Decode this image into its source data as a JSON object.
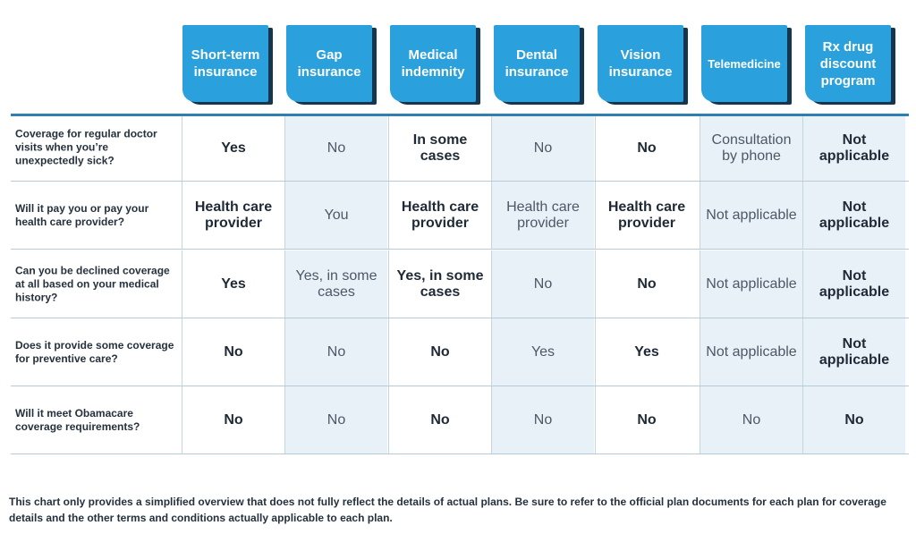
{
  "chart_data": {
    "type": "table",
    "columns": [
      "Short-term insurance",
      "Gap insurance",
      "Medical indemnity",
      "Dental insurance",
      "Vision insurance",
      "Telemedicine",
      "Rx drug discount program"
    ],
    "rows": [
      {
        "question": "Coverage for regular doctor visits when you’re unexpectedly sick?",
        "cells": [
          "Yes",
          "No",
          "In some cases",
          "No",
          "No",
          "Consultation by phone",
          "Not applicable"
        ]
      },
      {
        "question": "Will it pay you or pay your health care provider?",
        "cells": [
          "Health care provider",
          "You",
          "Health care provider",
          "Health care provider",
          "Health care provider",
          "Not applicable",
          "Not applicable"
        ]
      },
      {
        "question": "Can you be declined coverage at all based on your medical history?",
        "cells": [
          "Yes",
          "Yes, in some cases",
          "Yes, in some cases",
          "No",
          "No",
          "Not applicable",
          "Not applicable"
        ]
      },
      {
        "question": "Does it provide some coverage for preventive care?",
        "cells": [
          "No",
          "No",
          "No",
          "Yes",
          "Yes",
          "Not applicable",
          "Not applicable"
        ]
      },
      {
        "question": "Will it meet Obamacare coverage requirements?",
        "cells": [
          "No",
          "No",
          "No",
          "No",
          "No",
          "No",
          "No"
        ]
      }
    ]
  },
  "footnote": "This chart only provides a simplified overview that does not fully reflect the details of actual plans. Be sure to refer to the official plan documents for each plan for coverage details and the other terms and conditions actually applicable to each plan.",
  "colors": {
    "header": "#2aa0dc",
    "header_shadow": "#16364f",
    "row_shade": "#e9f1f8",
    "rule": "#2f7fb2"
  }
}
